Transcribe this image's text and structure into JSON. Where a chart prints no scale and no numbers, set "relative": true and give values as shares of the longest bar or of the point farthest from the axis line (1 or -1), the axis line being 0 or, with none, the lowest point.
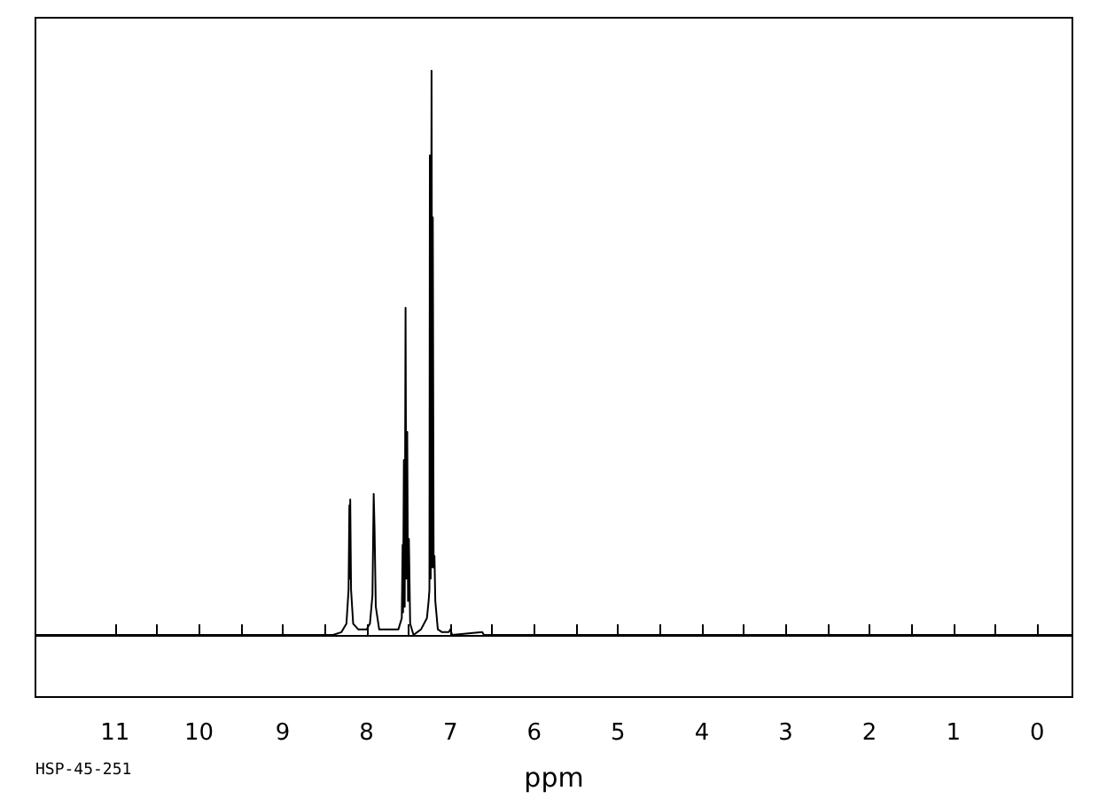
{
  "chart_data": {
    "type": "line",
    "relative": true,
    "xlabel": "ppm",
    "annotations": [
      "HSP-45-251"
    ],
    "xlim": [
      11.95,
      -0.42
    ],
    "xticks": [
      11,
      {
        "value": 10.5,
        "label": null
      },
      10,
      {
        "value": 9.5,
        "label": null
      },
      9,
      {
        "value": 8.5,
        "label": null
      },
      8,
      {
        "value": 7.5,
        "label": null
      },
      7,
      {
        "value": 6.5,
        "label": null
      },
      6,
      {
        "value": 5.5,
        "label": null
      },
      5,
      {
        "value": 4.5,
        "label": null
      },
      4,
      {
        "value": 3.5,
        "label": null
      },
      3,
      {
        "value": 2.5,
        "label": null
      },
      2,
      {
        "value": 1.5,
        "label": null
      },
      1,
      {
        "value": 0.5,
        "label": null
      },
      0
    ],
    "marker": "none",
    "series": [
      {
        "color": "#000000",
        "x": [
          11.95,
          8.4,
          8.3,
          8.24,
          8.215,
          8.205,
          8.2,
          8.195,
          8.185,
          8.16,
          8.1,
          8.0,
          7.96,
          7.93,
          7.915,
          7.905,
          7.89,
          7.85,
          7.7,
          7.62,
          7.58,
          7.57,
          7.565,
          7.555,
          7.545,
          7.535,
          7.525,
          7.515,
          7.505,
          7.495,
          7.48,
          7.44,
          7.35,
          7.28,
          7.26,
          7.25,
          7.245,
          7.235,
          7.225,
          7.215,
          7.21,
          7.2,
          7.19,
          7.18,
          7.15,
          7.1,
          7.02,
          7.0,
          6.98,
          6.62,
          6.6,
          -0.42
        ],
        "values": [
          0,
          0,
          0.005,
          0.02,
          0.08,
          0.23,
          0.1,
          0.24,
          0.08,
          0.02,
          0.01,
          0.01,
          0.02,
          0.07,
          0.25,
          0.19,
          0.05,
          0.01,
          0.01,
          0.01,
          0.03,
          0.16,
          0.04,
          0.31,
          0.05,
          0.58,
          0.1,
          0.36,
          0.06,
          0.17,
          0.02,
          0,
          0.01,
          0.03,
          0.06,
          0.08,
          0.85,
          0.1,
          1,
          0.12,
          0.74,
          0.12,
          0.14,
          0.06,
          0.01,
          0.005,
          0.005,
          0.01,
          0,
          0.005,
          0,
          0
        ]
      }
    ]
  }
}
